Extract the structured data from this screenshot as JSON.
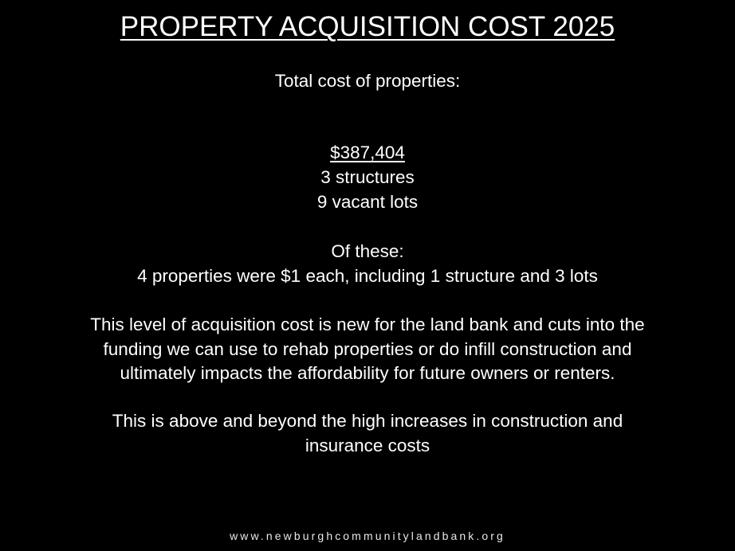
{
  "slide": {
    "title": "PROPERTY ACQUISITION COST 2025",
    "total_label": "Total cost of properties:",
    "total_amount": "$387,404",
    "structures": "3 structures",
    "vacant_lots": "9 vacant lots",
    "of_these": "Of these:",
    "dollar_properties": "4 properties were $1 each, including 1 structure and 3 lots",
    "paragraph1": [
      "This level of acquisition cost is new for the land bank and cuts into the",
      "funding we can use to rehab properties or do infill construction and",
      "ultimately impacts the affordability for future owners or renters."
    ],
    "paragraph2": [
      "This is above and beyond the high increases in construction and",
      "insurance costs"
    ],
    "footer_url": "www.newburghcommunitylandbank.org"
  }
}
